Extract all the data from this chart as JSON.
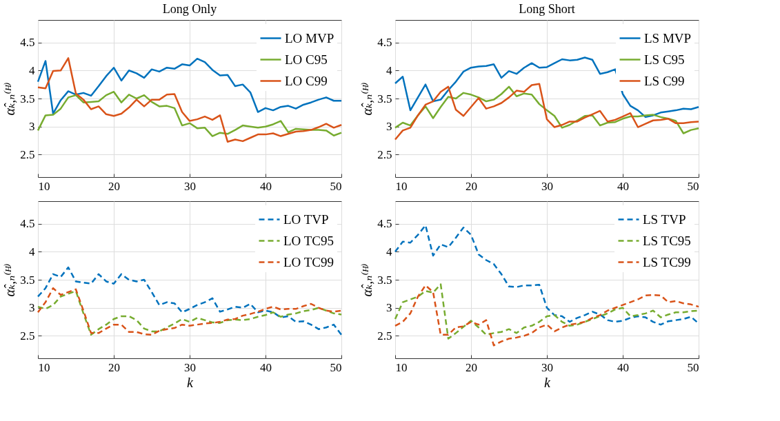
{
  "chart_data": [
    {
      "type": "line",
      "title": "Long Only",
      "ylabel": "α̂ₖ,ₙ⁽ᴴ⁾",
      "x": [
        10,
        11,
        12,
        13,
        14,
        15,
        16,
        17,
        18,
        19,
        20,
        21,
        22,
        23,
        24,
        25,
        26,
        27,
        28,
        29,
        30,
        31,
        32,
        33,
        34,
        35,
        36,
        37,
        38,
        39,
        40,
        41,
        42,
        43,
        44,
        45,
        46,
        47,
        48,
        49,
        50
      ],
      "xlim": [
        10,
        50
      ],
      "xticks": [
        10,
        20,
        30,
        40,
        50
      ],
      "ylim": [
        2.1,
        4.9
      ],
      "yticks": [
        2.5,
        3,
        3.5,
        4,
        4.5
      ],
      "grid": true,
      "legend": "top right",
      "line_style": "solid",
      "series": [
        {
          "name": "LO MVP",
          "color": "#0072bd",
          "values": [
            3.8,
            4.17,
            3.23,
            3.47,
            3.63,
            3.57,
            3.6,
            3.55,
            3.72,
            3.9,
            4.05,
            3.82,
            4.0,
            3.95,
            3.87,
            4.02,
            3.98,
            4.05,
            4.03,
            4.11,
            4.09,
            4.21,
            4.15,
            4.01,
            3.91,
            3.92,
            3.72,
            3.75,
            3.61,
            3.26,
            3.33,
            3.29,
            3.35,
            3.37,
            3.32,
            3.39,
            3.43,
            3.48,
            3.52,
            3.46,
            3.46
          ]
        },
        {
          "name": "LO C95",
          "color": "#77ac30",
          "values": [
            2.93,
            3.2,
            3.21,
            3.32,
            3.52,
            3.56,
            3.43,
            3.44,
            3.45,
            3.56,
            3.62,
            3.43,
            3.57,
            3.5,
            3.56,
            3.44,
            3.36,
            3.37,
            3.33,
            3.02,
            3.06,
            2.97,
            2.98,
            2.83,
            2.89,
            2.87,
            2.94,
            3.02,
            3.0,
            2.98,
            3.0,
            3.04,
            3.1,
            2.9,
            2.96,
            2.95,
            2.94,
            2.94,
            2.93,
            2.84,
            2.89
          ]
        },
        {
          "name": "LO C99",
          "color": "#d95319",
          "values": [
            3.7,
            3.68,
            3.99,
            4.0,
            4.22,
            3.59,
            3.48,
            3.31,
            3.36,
            3.22,
            3.19,
            3.23,
            3.34,
            3.48,
            3.36,
            3.48,
            3.48,
            3.57,
            3.58,
            3.26,
            3.1,
            3.13,
            3.18,
            3.12,
            3.2,
            2.73,
            2.77,
            2.74,
            2.8,
            2.86,
            2.86,
            2.88,
            2.83,
            2.87,
            2.91,
            2.92,
            2.94,
            2.99,
            3.05,
            2.98,
            3.03
          ]
        }
      ]
    },
    {
      "type": "line",
      "title": "Long Short",
      "ylabel": "α̂ₖ,ₙ⁽ᴴ⁾",
      "x": [
        10,
        11,
        12,
        13,
        14,
        15,
        16,
        17,
        18,
        19,
        20,
        21,
        22,
        23,
        24,
        25,
        26,
        27,
        28,
        29,
        30,
        31,
        32,
        33,
        34,
        35,
        36,
        37,
        38,
        39,
        40,
        41,
        42,
        43,
        44,
        45,
        46,
        47,
        48,
        49,
        50
      ],
      "xlim": [
        10,
        50
      ],
      "xticks": [
        10,
        20,
        30,
        40,
        50
      ],
      "ylim": [
        2.1,
        4.9
      ],
      "yticks": [
        2.5,
        3,
        3.5,
        4,
        4.5
      ],
      "grid": true,
      "legend": "top right",
      "line_style": "solid",
      "series": [
        {
          "name": "LS MVP",
          "color": "#0072bd",
          "values": [
            3.77,
            3.89,
            3.29,
            3.52,
            3.75,
            3.45,
            3.48,
            3.65,
            3.8,
            3.98,
            4.05,
            4.07,
            4.08,
            4.11,
            3.87,
            3.99,
            3.94,
            4.05,
            4.13,
            4.05,
            4.06,
            4.13,
            4.2,
            4.18,
            4.19,
            4.23,
            4.19,
            3.94,
            3.97,
            4.02,
            3.58,
            3.37,
            3.29,
            3.17,
            3.2,
            3.25,
            3.27,
            3.29,
            3.32,
            3.31,
            3.35
          ]
        },
        {
          "name": "LS C95",
          "color": "#77ac30",
          "values": [
            2.98,
            3.07,
            3.02,
            3.2,
            3.36,
            3.15,
            3.35,
            3.53,
            3.5,
            3.6,
            3.57,
            3.52,
            3.45,
            3.48,
            3.58,
            3.71,
            3.54,
            3.59,
            3.57,
            3.4,
            3.29,
            3.19,
            2.98,
            3.03,
            3.11,
            3.19,
            3.2,
            3.02,
            3.07,
            3.08,
            3.14,
            3.18,
            3.18,
            3.2,
            3.21,
            3.17,
            3.14,
            3.1,
            2.88,
            2.94,
            2.97
          ]
        },
        {
          "name": "LS C99",
          "color": "#d95319",
          "values": [
            2.77,
            2.93,
            2.98,
            3.2,
            3.39,
            3.45,
            3.62,
            3.71,
            3.3,
            3.19,
            3.35,
            3.51,
            3.32,
            3.36,
            3.42,
            3.52,
            3.64,
            3.62,
            3.74,
            3.76,
            3.13,
            2.99,
            3.03,
            3.09,
            3.09,
            3.16,
            3.22,
            3.28,
            3.09,
            3.12,
            3.18,
            3.24,
            2.99,
            3.05,
            3.11,
            3.12,
            3.14,
            3.06,
            3.06,
            3.08,
            3.09
          ]
        }
      ]
    },
    {
      "type": "line",
      "xlabel": "k",
      "ylabel": "α̂ₖ,ₙ⁽ᴴ⁾",
      "x": [
        10,
        11,
        12,
        13,
        14,
        15,
        16,
        17,
        18,
        19,
        20,
        21,
        22,
        23,
        24,
        25,
        26,
        27,
        28,
        29,
        30,
        31,
        32,
        33,
        34,
        35,
        36,
        37,
        38,
        39,
        40,
        41,
        42,
        43,
        44,
        45,
        46,
        47,
        48,
        49,
        50
      ],
      "xlim": [
        10,
        50
      ],
      "xticks": [
        10,
        20,
        30,
        40,
        50
      ],
      "ylim": [
        2.1,
        4.9
      ],
      "yticks": [
        2.5,
        3,
        3.5,
        4,
        4.5
      ],
      "grid": true,
      "legend": "top right",
      "line_style": "dashed",
      "series": [
        {
          "name": "LO TVP",
          "color": "#0072bd",
          "values": [
            3.2,
            3.35,
            3.6,
            3.55,
            3.72,
            3.47,
            3.45,
            3.43,
            3.6,
            3.47,
            3.43,
            3.6,
            3.5,
            3.47,
            3.5,
            3.28,
            3.05,
            3.1,
            3.08,
            2.92,
            2.98,
            3.05,
            3.1,
            3.17,
            2.93,
            2.97,
            3.02,
            3.0,
            3.07,
            2.92,
            2.95,
            2.92,
            2.83,
            2.85,
            2.75,
            2.76,
            2.7,
            2.62,
            2.65,
            2.7,
            2.52
          ]
        },
        {
          "name": "LO TC95",
          "color": "#77ac30",
          "values": [
            3.02,
            2.98,
            3.05,
            3.2,
            3.25,
            3.3,
            2.9,
            2.52,
            2.62,
            2.7,
            2.8,
            2.85,
            2.85,
            2.78,
            2.63,
            2.58,
            2.58,
            2.65,
            2.72,
            2.8,
            2.75,
            2.82,
            2.78,
            2.74,
            2.73,
            2.78,
            2.79,
            2.78,
            2.8,
            2.84,
            2.87,
            2.92,
            2.84,
            2.88,
            2.9,
            2.94,
            2.96,
            3.0,
            2.95,
            2.9,
            2.88
          ]
        },
        {
          "name": "LO TC99",
          "color": "#d95319",
          "values": [
            2.92,
            3.1,
            3.35,
            3.23,
            3.28,
            3.33,
            2.95,
            2.55,
            2.55,
            2.63,
            2.7,
            2.7,
            2.57,
            2.57,
            2.53,
            2.52,
            2.59,
            2.62,
            2.64,
            2.7,
            2.68,
            2.7,
            2.72,
            2.73,
            2.75,
            2.79,
            2.8,
            2.86,
            2.89,
            2.93,
            2.98,
            3.02,
            2.97,
            2.98,
            2.98,
            3.03,
            3.07,
            3.0,
            2.95,
            2.93,
            2.95
          ]
        }
      ]
    },
    {
      "type": "line",
      "xlabel": "k",
      "ylabel": "α̂ₖ,ₙ⁽ᴴ⁾",
      "x": [
        10,
        11,
        12,
        13,
        14,
        15,
        16,
        17,
        18,
        19,
        20,
        21,
        22,
        23,
        24,
        25,
        26,
        27,
        28,
        29,
        30,
        31,
        32,
        33,
        34,
        35,
        36,
        37,
        38,
        39,
        40,
        41,
        42,
        43,
        44,
        45,
        46,
        47,
        48,
        49,
        50
      ],
      "xlim": [
        10,
        50
      ],
      "xticks": [
        10,
        20,
        30,
        40,
        50
      ],
      "ylim": [
        2.1,
        4.9
      ],
      "yticks": [
        2.5,
        3,
        3.5,
        4,
        4.5
      ],
      "grid": true,
      "legend": "top right",
      "line_style": "dashed",
      "series": [
        {
          "name": "LS TVP",
          "color": "#0072bd",
          "values": [
            4.0,
            4.18,
            4.16,
            4.3,
            4.47,
            3.93,
            4.13,
            4.08,
            4.25,
            4.43,
            4.3,
            3.95,
            3.85,
            3.78,
            3.6,
            3.38,
            3.37,
            3.4,
            3.4,
            3.41,
            3.0,
            2.87,
            2.85,
            2.75,
            2.82,
            2.87,
            2.93,
            2.88,
            2.78,
            2.75,
            2.77,
            2.82,
            2.85,
            2.83,
            2.75,
            2.7,
            2.76,
            2.78,
            2.8,
            2.84,
            2.72
          ]
        },
        {
          "name": "LS TC95",
          "color": "#77ac30",
          "values": [
            2.8,
            3.1,
            3.15,
            3.2,
            3.3,
            3.27,
            3.42,
            2.45,
            2.55,
            2.66,
            2.77,
            2.65,
            2.52,
            2.55,
            2.57,
            2.62,
            2.55,
            2.65,
            2.68,
            2.75,
            2.85,
            2.87,
            2.75,
            2.68,
            2.7,
            2.75,
            2.8,
            2.85,
            2.9,
            2.97,
            3.0,
            2.85,
            2.87,
            2.9,
            2.95,
            2.83,
            2.88,
            2.92,
            2.92,
            2.94,
            2.95
          ]
        },
        {
          "name": "LS TC99",
          "color": "#d95319",
          "values": [
            2.68,
            2.75,
            2.9,
            3.2,
            3.4,
            3.28,
            2.52,
            2.52,
            2.65,
            2.67,
            2.75,
            2.7,
            2.78,
            2.33,
            2.4,
            2.45,
            2.47,
            2.5,
            2.55,
            2.65,
            2.7,
            2.58,
            2.65,
            2.7,
            2.72,
            2.75,
            2.82,
            2.87,
            2.95,
            3.0,
            3.05,
            3.1,
            3.15,
            3.22,
            3.23,
            3.22,
            3.1,
            3.12,
            3.08,
            3.06,
            3.02
          ]
        }
      ]
    }
  ]
}
